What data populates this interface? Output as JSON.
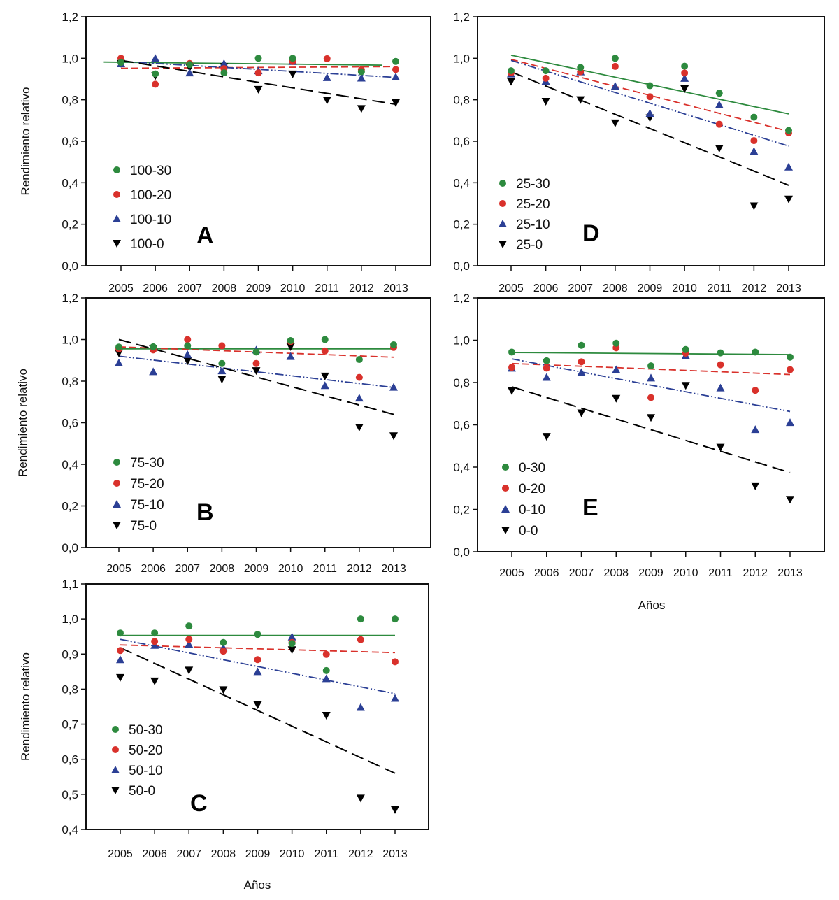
{
  "figure": {
    "colors": {
      "s30": "#2d8a3e",
      "s20": "#d9312b",
      "s10": "#2b3f95",
      "s0": "#000000"
    }
  },
  "chart_data": [
    {
      "id": "A",
      "type": "scatter",
      "title": "",
      "panel_label": "A",
      "xlabel": "",
      "ylabel": "Rendimiento relativo",
      "categories": [
        "2005",
        "2006",
        "2007",
        "2008",
        "2009",
        "2010",
        "2011",
        "2012",
        "2013"
      ],
      "ylim": [
        0,
        1.2
      ],
      "yticks": [
        0,
        0.2,
        0.4,
        0.6,
        0.8,
        1.0,
        1.2
      ],
      "ytick_labels": [
        "0,0",
        "0,2",
        "0,4",
        "0,6",
        "0,8",
        "1,0",
        "1,2"
      ],
      "legend_position": "lower-left",
      "series": [
        {
          "name": "100-30",
          "marker": "circle",
          "color_key": "s30",
          "line_style": "solid",
          "values": [
            0.98,
            0.925,
            0.97,
            0.93,
            1.0,
            1.0,
            null,
            0.935,
            0.985
          ],
          "trend": {
            "x0": 2004.5,
            "y0": 0.982,
            "x1": 2012.6,
            "y1": 0.967
          }
        },
        {
          "name": "100-20",
          "marker": "circle",
          "color_key": "s20",
          "line_style": "dashed",
          "values": [
            1.0,
            0.875,
            0.975,
            0.95,
            0.93,
            0.985,
            0.998,
            0.945,
            0.946
          ],
          "trend": {
            "x0": 2005,
            "y0": 0.952,
            "x1": 2013,
            "y1": 0.96
          }
        },
        {
          "name": "100-10",
          "marker": "triangle-up",
          "color_key": "s10",
          "line_style": "dash-dot-dot",
          "values": [
            0.974,
            1.0,
            0.93,
            0.975,
            0.94,
            0.985,
            0.907,
            0.905,
            0.91
          ],
          "trend": {
            "x0": 2005,
            "y0": 0.985,
            "x1": 2013,
            "y1": 0.908
          }
        },
        {
          "name": "100-0",
          "marker": "triangle-down",
          "color_key": "s0",
          "line_style": "long-dash",
          "values": [
            0.975,
            0.915,
            0.955,
            0.96,
            0.85,
            0.924,
            0.798,
            0.757,
            0.786
          ],
          "trend": {
            "x0": 2005,
            "y0": 0.99,
            "x1": 2013,
            "y1": 0.778
          }
        }
      ]
    },
    {
      "id": "B",
      "type": "scatter",
      "title": "",
      "panel_label": "B",
      "xlabel": "",
      "ylabel": "Rendimiento relativo",
      "categories": [
        "2005",
        "2006",
        "2007",
        "2008",
        "2009",
        "2010",
        "2011",
        "2012",
        "2013"
      ],
      "ylim": [
        0,
        1.2
      ],
      "yticks": [
        0,
        0.2,
        0.4,
        0.6,
        0.8,
        1.0,
        1.2
      ],
      "ytick_labels": [
        "0,0",
        "0,2",
        "0,4",
        "0,6",
        "0,8",
        "1,0",
        "1,2"
      ],
      "legend_position": "lower-left",
      "series": [
        {
          "name": "75-30",
          "marker": "circle",
          "color_key": "s30",
          "line_style": "solid",
          "values": [
            0.964,
            0.965,
            0.97,
            0.885,
            0.94,
            0.995,
            1.0,
            0.904,
            0.975
          ],
          "trend": {
            "x0": 2005,
            "y0": 0.955,
            "x1": 2013,
            "y1": 0.955
          }
        },
        {
          "name": "75-20",
          "marker": "circle",
          "color_key": "s20",
          "line_style": "dashed",
          "values": [
            0.955,
            0.95,
            1.0,
            0.97,
            0.885,
            0.99,
            0.945,
            0.818,
            0.962
          ],
          "trend": {
            "x0": 2005,
            "y0": 0.965,
            "x1": 2013,
            "y1": 0.915
          }
        },
        {
          "name": "75-10",
          "marker": "triangle-up",
          "color_key": "s10",
          "line_style": "dash-dot-dot",
          "values": [
            0.888,
            0.846,
            0.928,
            0.85,
            0.95,
            0.919,
            0.779,
            0.719,
            0.771
          ],
          "trend": {
            "x0": 2005,
            "y0": 0.92,
            "x1": 2013,
            "y1": 0.77
          }
        },
        {
          "name": "75-0",
          "marker": "triangle-down",
          "color_key": "s0",
          "line_style": "long-dash",
          "values": [
            0.935,
            0.955,
            0.897,
            0.809,
            0.85,
            0.965,
            0.824,
            0.578,
            0.537
          ],
          "trend": {
            "x0": 2005,
            "y0": 1.0,
            "x1": 2013,
            "y1": 0.64
          }
        }
      ]
    },
    {
      "id": "C",
      "type": "scatter",
      "title": "",
      "panel_label": "C",
      "xlabel": "Años",
      "ylabel": "Rendimiento relativo",
      "categories": [
        "2005",
        "2006",
        "2007",
        "2008",
        "2009",
        "2010",
        "2011",
        "2012",
        "2013"
      ],
      "ylim": [
        0.4,
        1.1
      ],
      "yticks": [
        0.4,
        0.5,
        0.6,
        0.7,
        0.8,
        0.9,
        1.0,
        1.1
      ],
      "ytick_labels": [
        "0,4",
        "0,5",
        "0,6",
        "0,7",
        "0,8",
        "0,9",
        "1,0",
        "1,1"
      ],
      "legend_position": "lower-left",
      "series": [
        {
          "name": "50-30",
          "marker": "circle",
          "color_key": "s30",
          "line_style": "solid",
          "values": [
            0.96,
            0.96,
            0.98,
            0.933,
            0.956,
            0.93,
            0.853,
            1.0,
            1.0
          ],
          "trend": {
            "x0": 2005,
            "y0": 0.953,
            "x1": 2013,
            "y1": 0.953
          }
        },
        {
          "name": "50-20",
          "marker": "circle",
          "color_key": "s20",
          "line_style": "dashed",
          "values": [
            0.91,
            0.936,
            0.942,
            0.908,
            0.884,
            0.933,
            0.899,
            0.941,
            0.878
          ],
          "trend": {
            "x0": 2005,
            "y0": 0.926,
            "x1": 2013,
            "y1": 0.904
          }
        },
        {
          "name": "50-10",
          "marker": "triangle-up",
          "color_key": "s10",
          "line_style": "dash-dot-dot",
          "values": [
            0.884,
            0.925,
            0.928,
            0.918,
            0.85,
            0.949,
            0.83,
            0.748,
            0.774
          ],
          "trend": {
            "x0": 2005,
            "y0": 0.942,
            "x1": 2013,
            "y1": 0.787
          }
        },
        {
          "name": "50-0",
          "marker": "triangle-down",
          "color_key": "s0",
          "line_style": "long-dash",
          "values": [
            0.833,
            0.823,
            0.854,
            0.798,
            0.755,
            0.912,
            0.725,
            0.489,
            0.456
          ],
          "trend": {
            "x0": 2005,
            "y0": 0.918,
            "x1": 2013,
            "y1": 0.56
          }
        }
      ]
    },
    {
      "id": "D",
      "type": "scatter",
      "title": "",
      "panel_label": "D",
      "xlabel": "",
      "ylabel": "",
      "categories": [
        "2005",
        "2006",
        "2007",
        "2008",
        "2009",
        "2010",
        "2011",
        "2012",
        "2013"
      ],
      "ylim": [
        0,
        1.2
      ],
      "yticks": [
        0,
        0.2,
        0.4,
        0.6,
        0.8,
        1.0,
        1.2
      ],
      "ytick_labels": [
        "0,0",
        "0,2",
        "0,4",
        "0,6",
        "0,8",
        "1,0",
        "1,2"
      ],
      "legend_position": "lower-left",
      "series": [
        {
          "name": "25-30",
          "marker": "circle",
          "color_key": "s30",
          "line_style": "solid",
          "values": [
            0.94,
            0.94,
            0.956,
            1.0,
            0.868,
            0.962,
            0.832,
            0.716,
            0.652
          ],
          "trend": {
            "x0": 2005,
            "y0": 1.015,
            "x1": 2013,
            "y1": 0.732
          }
        },
        {
          "name": "25-20",
          "marker": "circle",
          "color_key": "s20",
          "line_style": "dashed",
          "values": [
            0.93,
            0.904,
            0.935,
            0.961,
            0.815,
            0.929,
            0.682,
            0.603,
            0.64
          ],
          "trend": {
            "x0": 2005,
            "y0": 0.995,
            "x1": 2013,
            "y1": 0.648
          }
        },
        {
          "name": "25-10",
          "marker": "triangle-up",
          "color_key": "s10",
          "line_style": "dash-dot-dot",
          "values": [
            0.925,
            0.89,
            0.935,
            0.866,
            0.735,
            0.904,
            0.776,
            0.552,
            0.476
          ],
          "trend": {
            "x0": 2005,
            "y0": 0.99,
            "x1": 2013,
            "y1": 0.577
          }
        },
        {
          "name": "25-0",
          "marker": "triangle-down",
          "color_key": "s0",
          "line_style": "long-dash",
          "values": [
            0.888,
            0.792,
            0.8,
            0.688,
            0.713,
            0.853,
            0.566,
            0.288,
            0.321
          ],
          "trend": {
            "x0": 2005,
            "y0": 0.935,
            "x1": 2013,
            "y1": 0.388
          }
        }
      ]
    },
    {
      "id": "E",
      "type": "scatter",
      "title": "",
      "panel_label": "E",
      "xlabel": "Años",
      "ylabel": "",
      "categories": [
        "2005",
        "2006",
        "2007",
        "2008",
        "2009",
        "2010",
        "2011",
        "2012",
        "2013"
      ],
      "ylim": [
        0,
        1.2
      ],
      "yticks": [
        0,
        0.2,
        0.4,
        0.6,
        0.8,
        1.0,
        1.2
      ],
      "ytick_labels": [
        "0,0",
        "0,2",
        "0,4",
        "0,6",
        "0,8",
        "1,0",
        "1,2"
      ],
      "legend_position": "lower-left",
      "series": [
        {
          "name": "0-30",
          "marker": "circle",
          "color_key": "s30",
          "line_style": "solid",
          "values": [
            0.944,
            0.903,
            0.976,
            0.986,
            0.879,
            0.956,
            0.94,
            0.944,
            0.92
          ],
          "trend": {
            "x0": 2005,
            "y0": 0.942,
            "x1": 2013,
            "y1": 0.932
          }
        },
        {
          "name": "0-20",
          "marker": "circle",
          "color_key": "s20",
          "line_style": "dashed",
          "values": [
            0.872,
            0.868,
            0.898,
            0.964,
            0.729,
            0.939,
            0.884,
            0.763,
            0.861
          ],
          "trend": {
            "x0": 2005,
            "y0": 0.89,
            "x1": 2013,
            "y1": 0.838
          }
        },
        {
          "name": "0-10",
          "marker": "triangle-up",
          "color_key": "s10",
          "line_style": "dash-dot-dot",
          "values": [
            0.868,
            0.825,
            0.848,
            0.861,
            0.822,
            0.928,
            0.775,
            0.578,
            0.611
          ],
          "trend": {
            "x0": 2005,
            "y0": 0.912,
            "x1": 2013,
            "y1": 0.663
          }
        },
        {
          "name": "0-0",
          "marker": "triangle-down",
          "color_key": "s0",
          "line_style": "long-dash",
          "values": [
            0.761,
            0.545,
            0.656,
            0.725,
            0.634,
            0.786,
            0.494,
            0.311,
            0.247
          ],
          "trend": {
            "x0": 2005,
            "y0": 0.78,
            "x1": 2013,
            "y1": 0.374
          }
        }
      ]
    }
  ]
}
